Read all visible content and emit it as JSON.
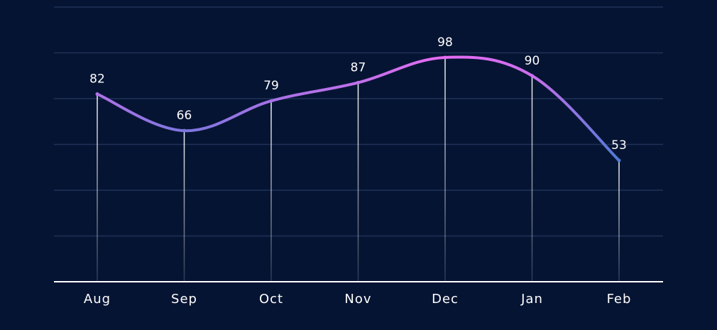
{
  "chart_data": {
    "type": "line",
    "categories": [
      "Aug",
      "Sep",
      "Oct",
      "Nov",
      "Dec",
      "Jan",
      "Feb"
    ],
    "values": [
      82,
      66,
      79,
      87,
      98,
      90,
      53
    ],
    "ylim": [
      0,
      120
    ],
    "grid": true,
    "legend": "none",
    "colors": {
      "background": "#061433",
      "grid": "#1F3156",
      "axis": "#FFFFFF",
      "line_start": "#E66CF2",
      "line_end": "#4F7BD6",
      "drop_line": "#FFFFFF",
      "text": "#FFFFFF"
    }
  }
}
